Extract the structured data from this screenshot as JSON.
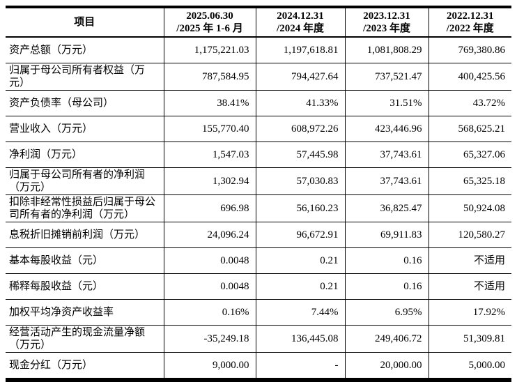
{
  "page": {
    "background_color": "#ffffff",
    "text_color": "#000000",
    "border_color": "#000000"
  },
  "table": {
    "item_column_header": "项目",
    "period_columns": [
      {
        "date": "2025.06.30",
        "period": "/2025 年 1-6 月"
      },
      {
        "date": "2024.12.31",
        "period": "/2024 年度"
      },
      {
        "date": "2023.12.31",
        "period": "/2023 年度"
      },
      {
        "date": "2022.12.31",
        "period": "/2022 年度"
      }
    ],
    "rows": [
      {
        "label": "资产总额（万元）",
        "values": [
          "1,175,221.03",
          "1,197,618.81",
          "1,081,808.29",
          "769,380.86"
        ]
      },
      {
        "label": "归属于母公司所有者权益（万元）",
        "values": [
          "787,584.95",
          "794,427.64",
          "737,521.47",
          "400,425.56"
        ]
      },
      {
        "label": "资产负债率（母公司）",
        "values": [
          "38.41%",
          "41.33%",
          "31.51%",
          "43.72%"
        ]
      },
      {
        "label": "营业收入（万元）",
        "values": [
          "155,770.40",
          "608,972.26",
          "423,446.96",
          "568,625.21"
        ]
      },
      {
        "label": "净利润（万元）",
        "values": [
          "1,547.03",
          "57,445.98",
          "37,743.61",
          "65,327.06"
        ]
      },
      {
        "label": "归属于母公司所有者的净利润（万元）",
        "values": [
          "1,302.94",
          "57,030.83",
          "37,743.61",
          "65,325.18"
        ]
      },
      {
        "label": "扣除非经常性损益后归属于母公司所有者的净利润（万元）",
        "values": [
          "696.98",
          "56,160.23",
          "36,825.47",
          "50,924.08"
        ]
      },
      {
        "label": "息税折旧摊销前利润（万元）",
        "values": [
          "24,096.24",
          "96,672.91",
          "69,911.83",
          "120,580.27"
        ]
      },
      {
        "label": "基本每股收益（元）",
        "values": [
          "0.0048",
          "0.21",
          "0.16",
          "不适用"
        ]
      },
      {
        "label": "稀释每股收益（元）",
        "values": [
          "0.0048",
          "0.21",
          "0.16",
          "不适用"
        ]
      },
      {
        "label": "加权平均净资产收益率",
        "values": [
          "0.16%",
          "7.44%",
          "6.95%",
          "17.92%"
        ]
      },
      {
        "label": "经营活动产生的现金流量净额（万元）",
        "values": [
          "-35,249.18",
          "136,445.08",
          "249,406.72",
          "51,309.81"
        ]
      },
      {
        "label": "现金分红（万元）",
        "values": [
          "9,000.00",
          "-",
          "20,000.00",
          "5,000.00"
        ]
      }
    ]
  }
}
